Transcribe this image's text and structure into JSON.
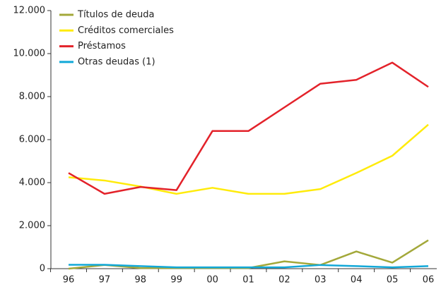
{
  "chart_data": {
    "type": "line",
    "categories": [
      "96",
      "97",
      "98",
      "99",
      "00",
      "01",
      "02",
      "03",
      "04",
      "05",
      "06"
    ],
    "series": [
      {
        "name": "Títulos de deuda",
        "color": "#a3a83a",
        "values": [
          0,
          170,
          30,
          30,
          30,
          30,
          340,
          170,
          800,
          280,
          1320
        ]
      },
      {
        "name": "Créditos comerciales",
        "color": "#ffeb0a",
        "values": [
          4250,
          4100,
          3820,
          3480,
          3760,
          3480,
          3480,
          3700,
          4450,
          5250,
          6700
        ]
      },
      {
        "name": "Préstamos",
        "color": "#e3222a",
        "values": [
          4450,
          3480,
          3800,
          3650,
          6400,
          6400,
          7500,
          8600,
          8780,
          9580,
          8450
        ]
      },
      {
        "name": "Otras deudas (1)",
        "color": "#12a8d8",
        "values": [
          180,
          180,
          120,
          60,
          60,
          60,
          60,
          170,
          120,
          60,
          120
        ]
      }
    ],
    "ylim": [
      0,
      12000
    ],
    "yticks": [
      0,
      {
        "value": 2000,
        "label": "2.000"
      },
      {
        "value": 4000,
        "label": "4.000"
      },
      {
        "value": 6000,
        "label": "6.000"
      },
      {
        "value": 8000,
        "label": "8.000"
      },
      {
        "value": 10000,
        "label": "10.000"
      },
      {
        "value": 12000,
        "label": "12.000"
      }
    ],
    "legend": "upper-left"
  }
}
